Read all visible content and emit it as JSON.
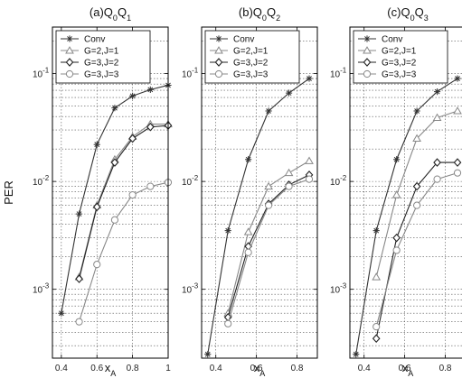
{
  "chart_data": [
    {
      "type": "line",
      "title_main": "(a)Q",
      "title_parts": [
        {
          "t": "0",
          "sub": true
        },
        {
          "t": "Q",
          "sub": false
        },
        {
          "t": "1",
          "sub": true
        }
      ],
      "xlabel_main": "x",
      "xlabel_sub": "A",
      "ylabel": "PER",
      "yscale": "log",
      "xlim": [
        0.35,
        1.0
      ],
      "ylim": [
        0.00023,
        0.27
      ],
      "xticks": [
        "0.4",
        "0.6",
        "0.8",
        "1"
      ],
      "xtick_values": [
        0.4,
        0.6,
        0.8,
        1.0
      ],
      "yticks": [
        {
          "base": "10",
          "exp": "-3",
          "value": 0.001
        },
        {
          "base": "10",
          "exp": "-2",
          "value": 0.01
        },
        {
          "base": "10",
          "exp": "-1",
          "value": 0.1
        }
      ],
      "grid": true,
      "legend_position": "top-left",
      "series": [
        {
          "name": "Conv",
          "marker": "star",
          "color": "#333333",
          "x": [
            0.4,
            0.5,
            0.6,
            0.7,
            0.8,
            0.9,
            1.0
          ],
          "y": [
            0.0006,
            0.005,
            0.022,
            0.048,
            0.062,
            0.071,
            0.078
          ]
        },
        {
          "name": "G=2,J=1",
          "marker": "triangle",
          "color": "#888888",
          "x": [
            0.5,
            0.6,
            0.7,
            0.8,
            0.9,
            1.0
          ],
          "y": [
            0.0013,
            0.006,
            0.016,
            0.026,
            0.034,
            0.034
          ]
        },
        {
          "name": "G=3,J=2",
          "marker": "diamond",
          "color": "#222222",
          "x": [
            0.5,
            0.6,
            0.7,
            0.8,
            0.9,
            1.0
          ],
          "y": [
            0.00125,
            0.0058,
            0.015,
            0.025,
            0.032,
            0.033
          ]
        },
        {
          "name": "G=3,J=3",
          "marker": "circle",
          "color": "#888888",
          "x": [
            0.5,
            0.6,
            0.7,
            0.8,
            0.9,
            1.0
          ],
          "y": [
            0.0005,
            0.0017,
            0.0044,
            0.0075,
            0.009,
            0.0098
          ]
        }
      ]
    },
    {
      "type": "line",
      "title_main": "(b)Q",
      "title_parts": [
        {
          "t": "0",
          "sub": true
        },
        {
          "t": "Q",
          "sub": false
        },
        {
          "t": "2",
          "sub": true
        }
      ],
      "xlabel_main": "x",
      "xlabel_sub": "A",
      "ylabel": "",
      "yscale": "log",
      "xlim": [
        0.33,
        0.9
      ],
      "ylim": [
        0.00023,
        0.27
      ],
      "xticks": [
        "0.4",
        "0.6",
        "0.8"
      ],
      "xtick_values": [
        0.4,
        0.6,
        0.8
      ],
      "yticks": [
        {
          "base": "10",
          "exp": "-3",
          "value": 0.001
        },
        {
          "base": "10",
          "exp": "-2",
          "value": 0.01
        },
        {
          "base": "10",
          "exp": "-1",
          "value": 0.1
        }
      ],
      "grid": true,
      "legend_position": "top-left",
      "series": [
        {
          "name": "Conv",
          "marker": "star",
          "color": "#333333",
          "x": [
            0.36,
            0.46,
            0.56,
            0.66,
            0.76,
            0.86
          ],
          "y": [
            0.00025,
            0.0035,
            0.016,
            0.045,
            0.066,
            0.09
          ]
        },
        {
          "name": "G=2,J=1",
          "marker": "triangle",
          "color": "#888888",
          "x": [
            0.46,
            0.56,
            0.66,
            0.76,
            0.86
          ],
          "y": [
            0.0006,
            0.0034,
            0.009,
            0.012,
            0.0155
          ]
        },
        {
          "name": "G=3,J=2",
          "marker": "diamond",
          "color": "#222222",
          "x": [
            0.46,
            0.56,
            0.66,
            0.76,
            0.86
          ],
          "y": [
            0.00055,
            0.0025,
            0.0062,
            0.0093,
            0.0115
          ]
        },
        {
          "name": "G=3,J=3",
          "marker": "circle",
          "color": "#888888",
          "x": [
            0.46,
            0.56,
            0.66,
            0.76,
            0.86
          ],
          "y": [
            0.00048,
            0.0022,
            0.006,
            0.009,
            0.0105
          ]
        }
      ]
    },
    {
      "type": "line",
      "title_main": "(c)Q",
      "title_parts": [
        {
          "t": "0",
          "sub": true
        },
        {
          "t": "Q",
          "sub": false
        },
        {
          "t": "3",
          "sub": true
        }
      ],
      "xlabel_main": "x",
      "xlabel_sub": "A",
      "ylabel": "",
      "yscale": "log",
      "xlim": [
        0.33,
        0.9
      ],
      "ylim": [
        0.00023,
        0.27
      ],
      "xticks": [
        "0.4",
        "0.6",
        "0.8"
      ],
      "xtick_values": [
        0.4,
        0.6,
        0.8
      ],
      "yticks": [
        {
          "base": "10",
          "exp": "-3",
          "value": 0.001
        },
        {
          "base": "10",
          "exp": "-2",
          "value": 0.01
        },
        {
          "base": "10",
          "exp": "-1",
          "value": 0.1
        }
      ],
      "grid": true,
      "legend_position": "top-left",
      "series": [
        {
          "name": "Conv",
          "marker": "star",
          "color": "#333333",
          "x": [
            0.36,
            0.46,
            0.56,
            0.66,
            0.76,
            0.86
          ],
          "y": [
            0.00025,
            0.0035,
            0.016,
            0.045,
            0.068,
            0.09
          ]
        },
        {
          "name": "G=2,J=1",
          "marker": "triangle",
          "color": "#888888",
          "x": [
            0.46,
            0.56,
            0.66,
            0.76,
            0.86
          ],
          "y": [
            0.0013,
            0.0075,
            0.025,
            0.039,
            0.045
          ]
        },
        {
          "name": "G=3,J=2",
          "marker": "diamond",
          "color": "#222222",
          "x": [
            0.46,
            0.56,
            0.66,
            0.76,
            0.86
          ],
          "y": [
            0.00035,
            0.003,
            0.009,
            0.015,
            0.015
          ]
        },
        {
          "name": "G=3,J=3",
          "marker": "circle",
          "color": "#888888",
          "x": [
            0.46,
            0.56,
            0.66,
            0.76,
            0.86
          ],
          "y": [
            0.00045,
            0.0023,
            0.006,
            0.0105,
            0.012
          ]
        }
      ]
    }
  ]
}
